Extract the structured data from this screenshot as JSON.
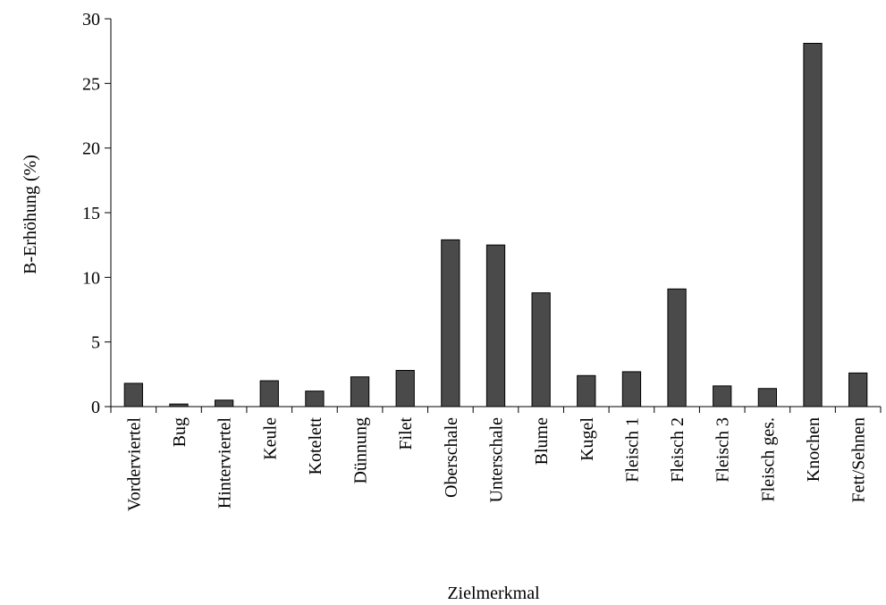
{
  "chart_data": {
    "type": "bar",
    "title": "",
    "xlabel": "Zielmerkmal",
    "ylabel": "B-Erhöhung (%)",
    "ylim": [
      0,
      30
    ],
    "yticks": [
      0,
      5,
      10,
      15,
      20,
      25,
      30
    ],
    "grid": false,
    "legend": "none",
    "categories": [
      "Vorderviertel",
      "Bug",
      "Hinterviertel",
      "Keule",
      "Kotelett",
      "Dünnung",
      "Filet",
      "Oberschale",
      "Unterschale",
      "Blume",
      "Kugel",
      "Fleisch 1",
      "Fleisch 2",
      "Fleisch 3",
      "Fleisch ges.",
      "Knochen",
      "Fett/Sehnen"
    ],
    "values": [
      1.8,
      0.2,
      0.5,
      2.0,
      1.2,
      2.3,
      2.8,
      12.9,
      12.5,
      8.8,
      2.4,
      2.7,
      9.1,
      1.6,
      1.4,
      28.1,
      2.6
    ],
    "colors": {
      "bar_fill": "#4a4a4a",
      "bar_stroke": "#000000",
      "axis": "#000000"
    }
  }
}
